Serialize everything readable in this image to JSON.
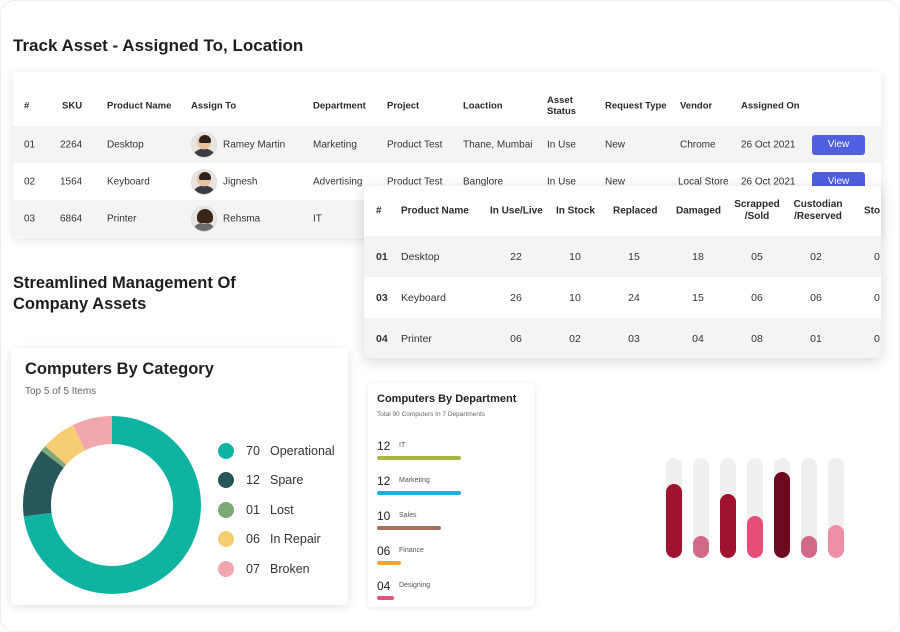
{
  "track_title": "Track Asset - Assigned To, Location",
  "track": {
    "headers": {
      "num": "#",
      "sku": "SKU",
      "product": "Product Name",
      "assign": "Assign To",
      "department": "Department",
      "project": "Project",
      "location": "Loaction",
      "status": "Asset Status",
      "request": "Request Type",
      "vendor": "Vendor",
      "assigned_on": "Assigned On"
    },
    "rows": [
      {
        "num": "01",
        "sku": "2264",
        "product": "Desktop",
        "assign": "Ramey Martin",
        "department": "Marketing",
        "project": "Product Test",
        "location": "Thane, Mumbai",
        "status": "In Use",
        "request": "New",
        "vendor": "Chrome",
        "assigned_on": "26 Oct 2021",
        "action": "View"
      },
      {
        "num": "02",
        "sku": "1564",
        "product": "Keyboard",
        "assign": "Jignesh",
        "department": "Advertising",
        "project": "Product Test",
        "location": "Banglore",
        "status": "In Use",
        "request": "New",
        "vendor": "Local Store",
        "assigned_on": "26 Oct 2021",
        "action": "View"
      },
      {
        "num": "03",
        "sku": "6864",
        "product": "Printer",
        "assign": "Rehsma",
        "department": "IT",
        "project": "",
        "location": "",
        "status": "",
        "request": "",
        "vendor": "",
        "assigned_on": "",
        "action": ""
      }
    ]
  },
  "stock": {
    "headers": {
      "num": "#",
      "product": "Product Name",
      "in_use": "In Use/Live",
      "in_stock": "In Stock",
      "replaced": "Replaced",
      "damaged": "Damaged",
      "scrapped": "Scrapped /Sold",
      "custodian": "Custodian /Reserved",
      "extra": "Sto"
    },
    "rows": [
      {
        "num": "01",
        "product": "Desktop",
        "in_use": "22",
        "in_stock": "10",
        "replaced": "15",
        "damaged": "18",
        "scrapped": "05",
        "custodian": "02",
        "extra": "0"
      },
      {
        "num": "03",
        "product": "Keyboard",
        "in_use": "26",
        "in_stock": "10",
        "replaced": "24",
        "damaged": "15",
        "scrapped": "06",
        "custodian": "06",
        "extra": "0"
      },
      {
        "num": "04",
        "product": "Printer",
        "in_use": "06",
        "in_stock": "02",
        "replaced": "03",
        "damaged": "04",
        "scrapped": "08",
        "custodian": "01",
        "extra": "0"
      }
    ]
  },
  "management_title_line1": "Streamlined Management Of",
  "management_title_line2": "Company Assets",
  "category": {
    "title": "Computers By Category",
    "subtitle": "Top 5 of 5 Items",
    "items": [
      {
        "value": "70",
        "label": "Operational",
        "color": "#0fb3a2"
      },
      {
        "value": "12",
        "label": "Spare",
        "color": "#27575a"
      },
      {
        "value": "01",
        "label": "Lost",
        "color": "#7fa878"
      },
      {
        "value": "06",
        "label": "In Repair",
        "color": "#f6cd72"
      },
      {
        "value": "07",
        "label": "Broken",
        "color": "#f1a7ad"
      }
    ]
  },
  "department": {
    "title": "Computers By Department",
    "subtitle": "Total 90 Computers In 7 Departments",
    "items": [
      {
        "value": "12",
        "label": "IT",
        "color": "#a9b83a",
        "fraction": 1.0
      },
      {
        "value": "12",
        "label": "Marketing",
        "color": "#20aee0",
        "fraction": 1.0
      },
      {
        "value": "10",
        "label": "Sales",
        "color": "#a8705b",
        "fraction": 0.76
      },
      {
        "value": "06",
        "label": "Finance",
        "color": "#f5a524",
        "fraction": 0.29
      },
      {
        "value": "04",
        "label": "Designing",
        "color": "#e8507d",
        "fraction": 0.2
      }
    ]
  },
  "bar_chart": {
    "levels": [
      0.74,
      0.22,
      0.64,
      0.42,
      0.86,
      0.22,
      0.33
    ],
    "colors": [
      "#a0132f",
      "#d06a86",
      "#a0132f",
      "#e84c79",
      "#6d0a21",
      "#d06a86",
      "#ef8fa6"
    ]
  }
}
